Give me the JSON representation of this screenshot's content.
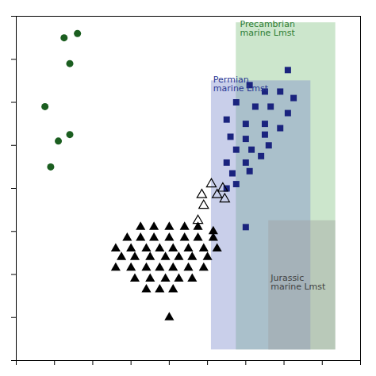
{
  "chart_data": {
    "type": "scatter",
    "xlim": [
      -10,
      8
    ],
    "ylim": [
      -10,
      6
    ],
    "xticks": [
      -10,
      -8,
      -6,
      -4,
      -2,
      0,
      2,
      4,
      6,
      8
    ],
    "yticks": [
      -10,
      -8,
      -6,
      -4,
      -2,
      0,
      2,
      4,
      6
    ],
    "tick_labels": false,
    "grid": false,
    "boxes": [
      {
        "x": 1.5,
        "y": -9.5,
        "width": 5.2,
        "height": 15.2,
        "color": "#80c080",
        "label": "Precambrian\nmarine Lmst",
        "label_x": 1.7,
        "label_y": 5.8,
        "label_color": "#2e7d32"
      },
      {
        "x": 0.2,
        "y": -9.5,
        "width": 5.2,
        "height": 12.5,
        "color": "#7986cb",
        "label": "Permian\nmarine Lmst",
        "label_x": 0.3,
        "label_y": 3.2,
        "label_color": "#283593"
      },
      {
        "x": 3.2,
        "y": -9.5,
        "width": 3.5,
        "height": 6.0,
        "color": "#9e9e9e",
        "label": "Jurassic\nmarine Lmst",
        "label_x": 3.3,
        "label_y": -6.0,
        "label_color": "#424242"
      }
    ],
    "series": [
      {
        "color": "#1b5e20",
        "marker": "circle",
        "values": [
          [
            -7.5,
            5.0
          ],
          [
            -6.8,
            5.2
          ],
          [
            -7.2,
            3.8
          ],
          [
            -8.5,
            1.8
          ],
          [
            -7.8,
            0.2
          ],
          [
            -7.2,
            0.5
          ],
          [
            -8.2,
            -1.0
          ]
        ]
      },
      {
        "color": "#1a237e",
        "marker": "square",
        "values": [
          [
            4.2,
            3.5
          ],
          [
            2.2,
            2.8
          ],
          [
            3.0,
            2.5
          ],
          [
            3.8,
            2.5
          ],
          [
            4.5,
            2.2
          ],
          [
            1.5,
            2.0
          ],
          [
            2.5,
            1.8
          ],
          [
            3.3,
            1.8
          ],
          [
            4.2,
            1.5
          ],
          [
            1.0,
            1.2
          ],
          [
            2.0,
            1.0
          ],
          [
            3.0,
            1.0
          ],
          [
            3.8,
            0.8
          ],
          [
            1.2,
            0.4
          ],
          [
            2.0,
            0.3
          ],
          [
            3.0,
            0.5
          ],
          [
            1.5,
            -0.2
          ],
          [
            2.3,
            -0.2
          ],
          [
            3.2,
            0.0
          ],
          [
            1.0,
            -0.8
          ],
          [
            2.0,
            -0.8
          ],
          [
            2.8,
            -0.5
          ],
          [
            1.3,
            -1.3
          ],
          [
            2.2,
            -1.2
          ],
          [
            1.5,
            -1.8
          ],
          [
            1.0,
            -2.0
          ],
          [
            2.0,
            -3.8
          ]
        ]
      },
      {
        "color": "#000000",
        "marker": "open_triangle",
        "values": [
          [
            0.2,
            -1.8
          ],
          [
            0.8,
            -2.0
          ],
          [
            -0.3,
            -2.3
          ],
          [
            0.5,
            -2.3
          ],
          [
            0.9,
            -2.5
          ],
          [
            -0.2,
            -2.8
          ],
          [
            -0.5,
            -3.5
          ]
        ]
      },
      {
        "color": "#000000",
        "marker": "triangle",
        "values": [
          [
            -3.5,
            -3.8
          ],
          [
            -2.8,
            -3.8
          ],
          [
            -2.0,
            -3.8
          ],
          [
            -1.2,
            -3.8
          ],
          [
            -0.5,
            -3.8
          ],
          [
            0.3,
            -4.0
          ],
          [
            -4.2,
            -4.3
          ],
          [
            -3.5,
            -4.3
          ],
          [
            -2.8,
            -4.3
          ],
          [
            -2.0,
            -4.3
          ],
          [
            -1.2,
            -4.3
          ],
          [
            -0.5,
            -4.3
          ],
          [
            0.3,
            -4.3
          ],
          [
            -4.8,
            -4.8
          ],
          [
            -4.0,
            -4.8
          ],
          [
            -3.2,
            -4.8
          ],
          [
            -2.5,
            -4.8
          ],
          [
            -1.8,
            -4.8
          ],
          [
            -1.0,
            -4.8
          ],
          [
            -0.2,
            -4.8
          ],
          [
            0.5,
            -4.8
          ],
          [
            -4.5,
            -5.2
          ],
          [
            -3.8,
            -5.2
          ],
          [
            -3.0,
            -5.2
          ],
          [
            -2.2,
            -5.2
          ],
          [
            -1.5,
            -5.2
          ],
          [
            -0.8,
            -5.2
          ],
          [
            0.0,
            -5.2
          ],
          [
            -4.8,
            -5.7
          ],
          [
            -4.0,
            -5.7
          ],
          [
            -3.2,
            -5.7
          ],
          [
            -2.5,
            -5.7
          ],
          [
            -1.8,
            -5.7
          ],
          [
            -1.0,
            -5.7
          ],
          [
            -0.2,
            -5.7
          ],
          [
            -3.8,
            -6.2
          ],
          [
            -3.0,
            -6.2
          ],
          [
            -2.2,
            -6.2
          ],
          [
            -1.5,
            -6.2
          ],
          [
            -0.8,
            -6.2
          ],
          [
            -3.2,
            -6.7
          ],
          [
            -2.5,
            -6.7
          ],
          [
            -1.8,
            -6.7
          ],
          [
            -2.0,
            -8.0
          ]
        ]
      }
    ]
  }
}
